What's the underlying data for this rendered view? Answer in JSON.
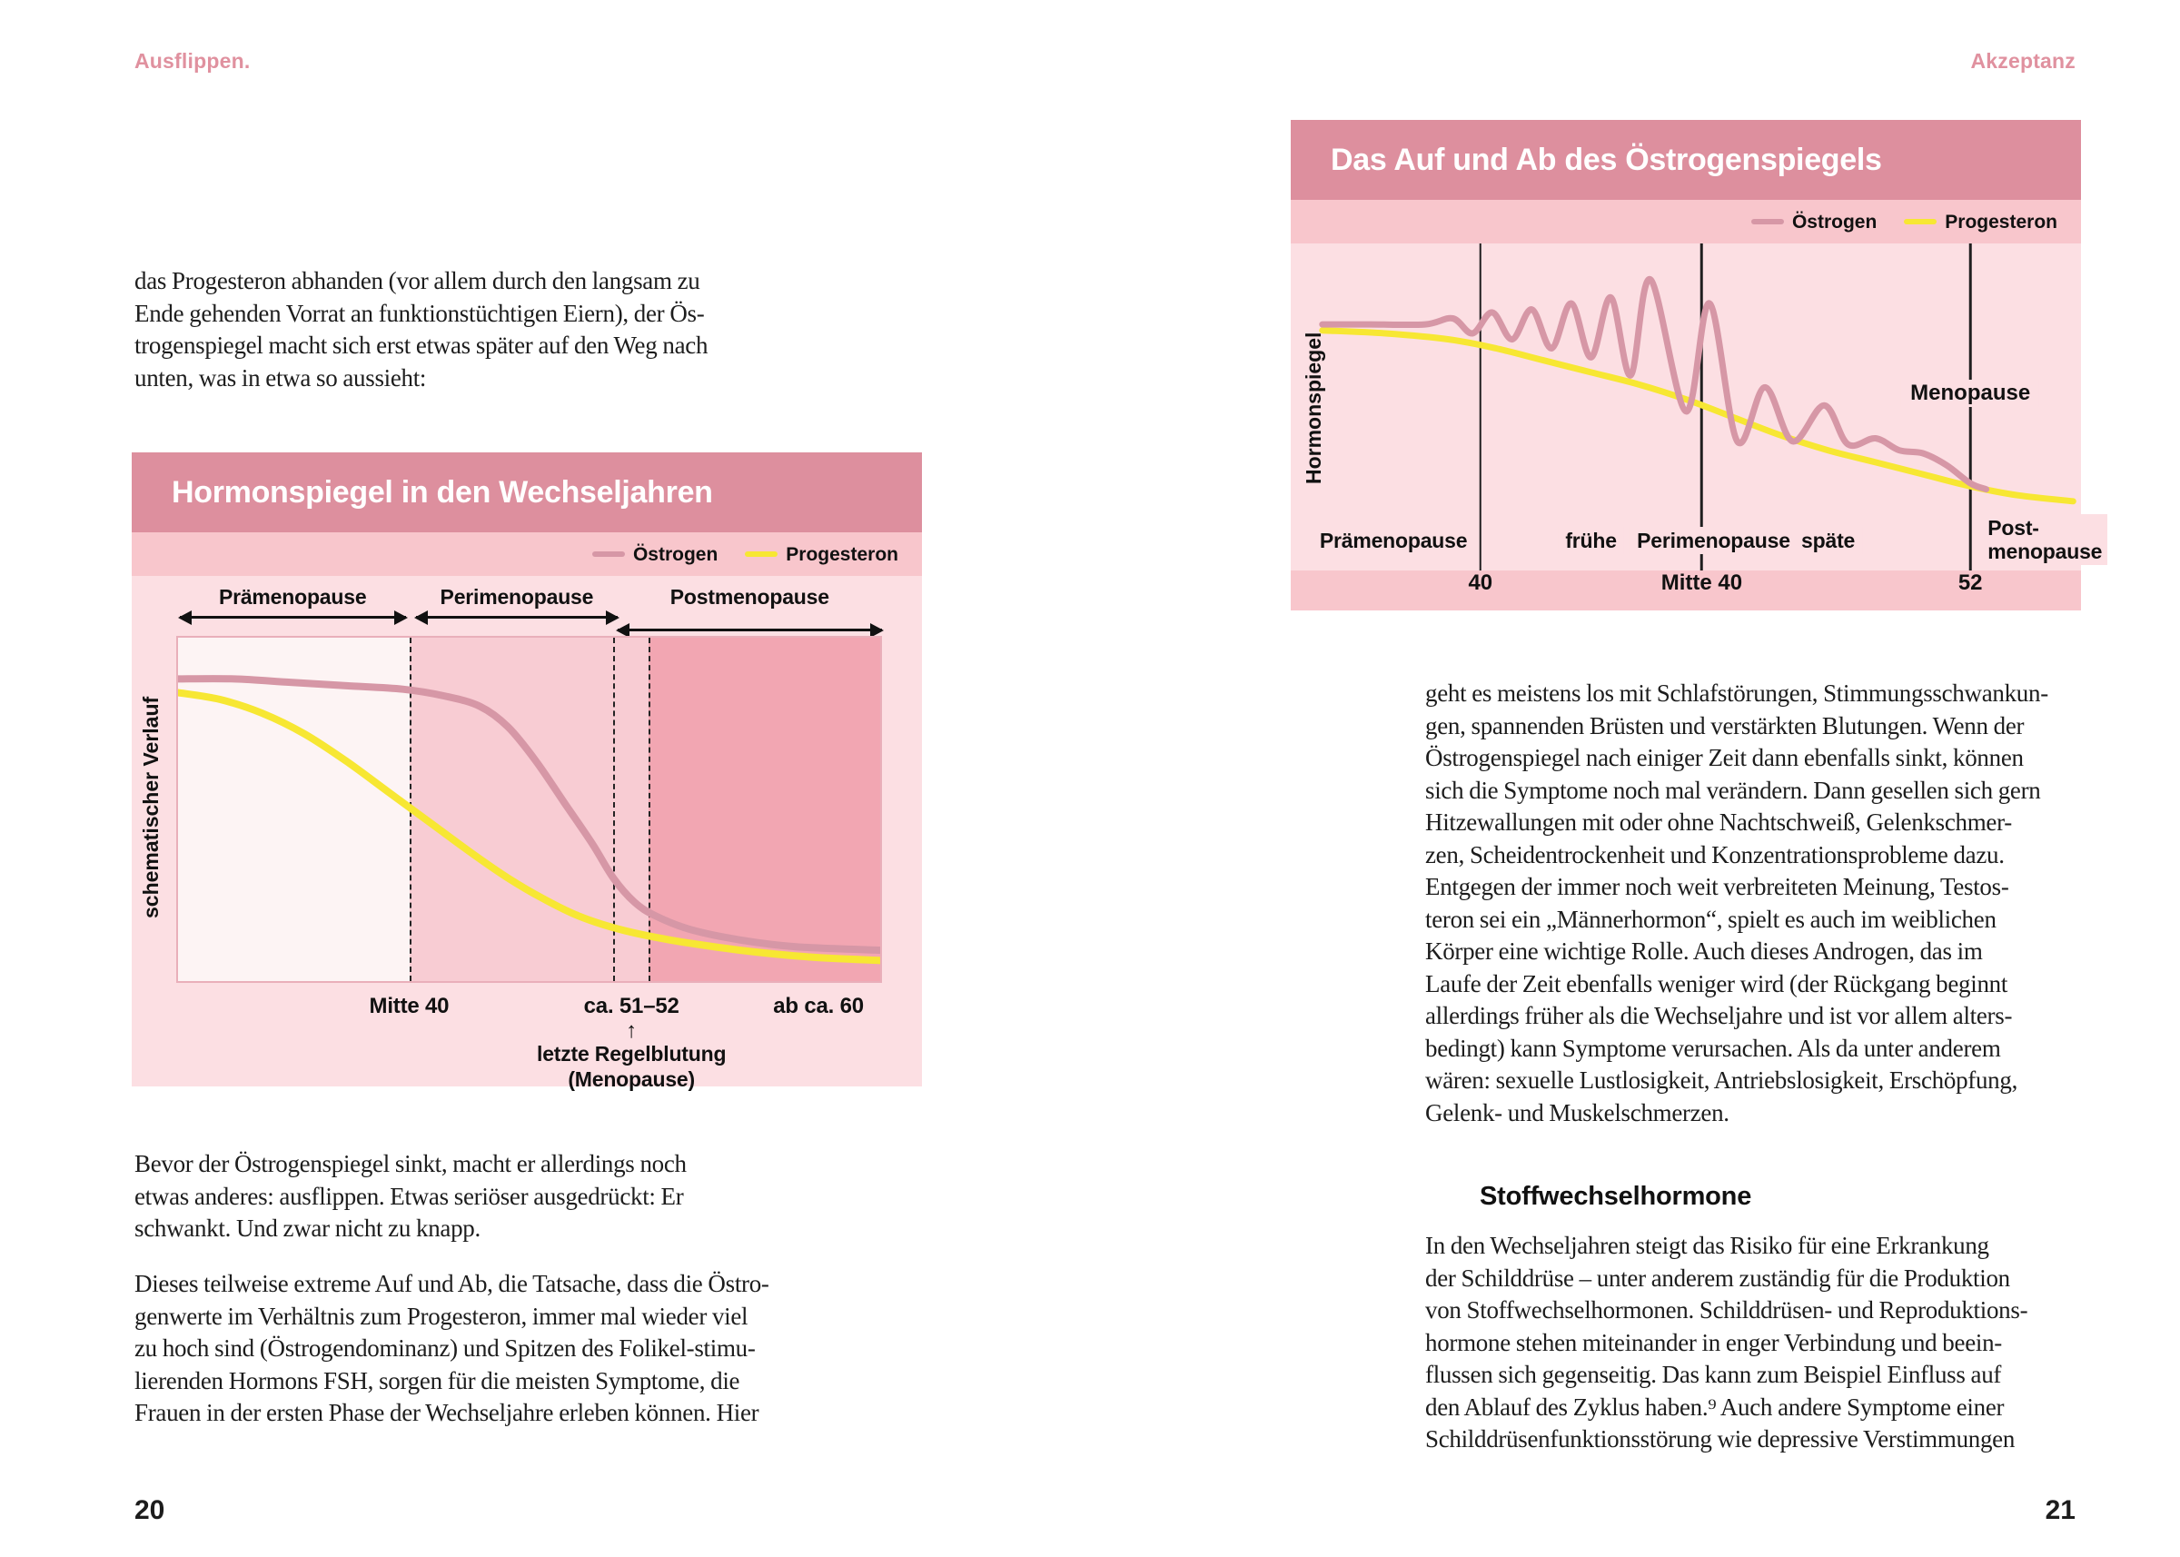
{
  "page_left": {
    "running_head": "Ausflippen.",
    "page_number": "20",
    "paragraphs": {
      "intro": "das Progesteron abhanden (vor allem durch den langsam zu\nEnde gehenden Vorrat an funktionstüchtigen Eiern), der Ös-\ntrogenspiegel macht sich erst etwas später auf den Weg nach\nunten, was in etwa so aussieht:",
      "bevor": "Bevor der Östrogenspiegel sinkt, macht er allerdings noch\netwas anderes: ausflippen. Etwas seriöser ausgedrückt: Er\nschwankt. Und zwar nicht zu knapp.",
      "dieses": "Dieses teilweise extreme Auf und Ab, die Tatsache,  dass die Östro-\ngenwerte im Verhältnis zum Progesteron,  immer mal wieder viel\nzu hoch sind (Östrogendominanz) und  Spitzen des Folikel-stimu-\nlierenden Hormons FSH,  sorgen für die meisten Symptome, die\nFrauen in der ersten  Phase der Wechseljahre erleben können. Hier"
    }
  },
  "page_right": {
    "running_head": "Akzeptanz",
    "page_number": "21",
    "paragraphs": {
      "symptome": "geht es meistens los mit Schlafstörungen, Stimmungsschwankun-\ngen, spannenden Brüsten und verstärkten Blutungen. Wenn der\nÖstrogenspiegel nach einiger Zeit dann ebenfalls sinkt, können\nsich die Symptome noch mal verändern. Dann gesellen sich gern\nHitzewallungen mit oder ohne Nachtschweiß, Gelenkschmer-\nzen, Scheidentrockenheit und Konzentrationsprobleme dazu.\nEntgegen der immer noch weit verbreiteten Meinung, Testos-\nteron sei ein „Männerhormon“, spielt es auch im weiblichen\nKörper eine wichtige Rolle. Auch dieses Androgen, das im\nLaufe der Zeit ebenfalls weniger wird (der Rückgang beginnt\nallerdings früher als die Wechseljahre und ist vor allem alters-\nbedingt) kann Symptome verursachen. Als da unter anderem\nwären: sexuelle Lustlosigkeit, Antriebslosigkeit, Erschöpfung,\nGelenk- und Muskelschmerzen.",
      "stoffwechsel": "In den Wechseljahren steigt das Risiko für eine Erkrankung\nder Schilddrüse – unter anderem zuständig für die Produktion\nvon Stoffwechselhormonen. Schilddrüsen- und Reproduktions-\nhormone stehen miteinander in enger Verbindung und beein-\nflussen sich gegenseitig. Das kann zum Beispiel Einfluss auf\nden Ablauf des Zyklus haben.⁹ Auch andere Symptome einer\nSchilddrüsenfunktionsstörung wie depressive Verstimmungen"
    },
    "heading": "Stoffwechselhormone"
  },
  "colors": {
    "chart_header_pink": "#dd8f9e",
    "legend_strip_pink": "#f8c6cc",
    "chart_background_pink": "#fcdfe3",
    "running_head_pink": "#e0919f",
    "oestrogen_line": "#d697a6",
    "progesteron_line": "#f7e733",
    "text": "#1c1c1c"
  },
  "chart_data": [
    {
      "type": "line",
      "title": "Hormonspiegel in den Wechseljahren",
      "ylabel": "schematischer Verlauf",
      "grid": false,
      "legend_position": "top-right",
      "xlim": [
        0,
        100
      ],
      "ylim": [
        0,
        100
      ],
      "phases": [
        {
          "label": "Prämenopause",
          "from": 0,
          "to": 33
        },
        {
          "label": "Perimenopause",
          "from": 34,
          "to": 62.5
        },
        {
          "label": "Postmenopause",
          "from": 62.5,
          "to": 100
        }
      ],
      "sections": [
        {
          "from": 0,
          "to": 33,
          "color": "#fdf4f4"
        },
        {
          "from": 33,
          "to": 67,
          "color": "#f8ccd3"
        },
        {
          "from": 67,
          "to": 100,
          "color": "#f2a6b2"
        }
      ],
      "dashed_lines_x": [
        33,
        62,
        67
      ],
      "x_ticks": [
        {
          "label": "Mitte 40",
          "x": 33
        },
        {
          "label": "ca. 51–52",
          "x": 64.5
        },
        {
          "label": "ab ca. 60",
          "x": 91
        }
      ],
      "annotation": {
        "arrow": "↑",
        "text": "letzte Regelblutung\n(Menopause)",
        "x": 64.5
      },
      "series": [
        {
          "name": "Progesteron",
          "color": "#f7e733",
          "x": [
            0,
            6,
            12,
            18,
            24,
            30,
            36,
            42,
            47,
            52,
            57,
            63,
            70,
            80,
            90,
            100
          ],
          "y": [
            84,
            82,
            78,
            72,
            64,
            55,
            46,
            37,
            30,
            24,
            19,
            15,
            12,
            9,
            7,
            6
          ]
        },
        {
          "name": "Östrogen",
          "color": "#d697a6",
          "x": [
            0,
            8,
            16,
            24,
            32,
            38,
            43,
            47,
            51,
            55,
            59,
            62,
            65,
            68,
            73,
            80,
            88,
            100
          ],
          "y": [
            88,
            88,
            87,
            86,
            85,
            83,
            80,
            74,
            64,
            52,
            40,
            30,
            23,
            19,
            15,
            12,
            10,
            9
          ]
        }
      ]
    },
    {
      "type": "line",
      "title": "Das Auf und Ab des Östrogenspiegels",
      "ylabel": "Hormonspiegel",
      "grid": false,
      "legend_position": "top-right",
      "xlim": [
        0,
        100
      ],
      "ylim": [
        0,
        100
      ],
      "vertical_lines": [
        {
          "label": "40",
          "x": 24
        },
        {
          "label": "Mitte 40",
          "x": 52
        },
        {
          "label": "52",
          "x": 86
        }
      ],
      "phase_labels": [
        {
          "label": "Prämenopause",
          "x": 13
        },
        {
          "label": "frühe",
          "x": 38
        },
        {
          "label": "Perimenopause",
          "x": 53.5
        },
        {
          "label": "späte",
          "x": 68
        },
        {
          "label": "Post-\nmenopause",
          "x": 87.5,
          "align": "left"
        }
      ],
      "annotation": {
        "text": "Menopause",
        "x": 86,
        "y_level": 50
      },
      "series": [
        {
          "name": "Progesteron",
          "color": "#f7e733",
          "x": [
            4,
            12,
            20,
            26,
            32,
            38,
            44,
            50,
            56,
            62,
            68,
            74,
            80,
            86,
            92,
            99
          ],
          "y": [
            71,
            70,
            68,
            65,
            61,
            57,
            53,
            48,
            42,
            36,
            31,
            27,
            23,
            19,
            16,
            14
          ]
        },
        {
          "name": "Östrogen",
          "color": "#d697a6",
          "x": [
            4,
            10,
            17,
            20.5,
            23,
            25.5,
            28,
            30.5,
            33,
            35.5,
            38,
            40.5,
            43,
            45.5,
            50,
            53,
            56.5,
            60,
            63.5,
            67.5,
            70.5,
            74,
            77,
            80,
            83,
            86,
            88
          ],
          "y": [
            73,
            73,
            73,
            75,
            70,
            77,
            68,
            78,
            65,
            80,
            62,
            82,
            56,
            88,
            44,
            80,
            34,
            52,
            34,
            46,
            33,
            35,
            31,
            30,
            26,
            20,
            18
          ]
        }
      ]
    }
  ]
}
